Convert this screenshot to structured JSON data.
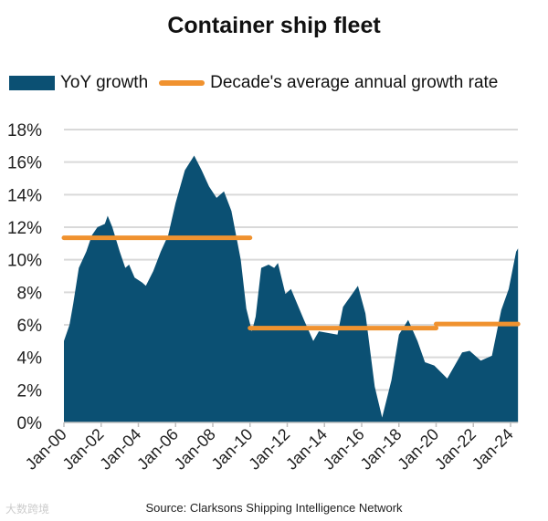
{
  "chart_data": {
    "type": "area",
    "title": "Container ship fleet",
    "xlabel": "",
    "ylabel": "",
    "ylim": [
      0,
      18
    ],
    "xlim": [
      2000,
      2024.4
    ],
    "y_ticks": [
      "0%",
      "2%",
      "4%",
      "6%",
      "8%",
      "10%",
      "12%",
      "14%",
      "16%",
      "18%"
    ],
    "x_ticks": [
      "Jan-00",
      "Jan-02",
      "Jan-04",
      "Jan-06",
      "Jan-08",
      "Jan-10",
      "Jan-12",
      "Jan-14",
      "Jan-16",
      "Jan-18",
      "Jan-20",
      "Jan-22",
      "Jan-24"
    ],
    "grid": true,
    "legend_position": "top",
    "legend": [
      "YoY growth",
      "Decade's average annual growth rate"
    ],
    "colors": {
      "area": "#0b5073",
      "line": "#f0922f",
      "grid": "#d9d9d9"
    },
    "series": [
      {
        "name": "YoY growth",
        "x": [
          2000.0,
          2000.3,
          2000.5,
          2000.8,
          2001.2,
          2001.5,
          2001.8,
          2002.2,
          2002.35,
          2002.6,
          2003.0,
          2003.3,
          2003.5,
          2003.8,
          2004.2,
          2004.4,
          2004.8,
          2005.2,
          2005.6,
          2006.0,
          2006.5,
          2007.0,
          2007.4,
          2007.8,
          2008.2,
          2008.6,
          2009.0,
          2009.5,
          2009.8,
          2010.1,
          2010.3,
          2010.6,
          2011.0,
          2011.3,
          2011.5,
          2011.9,
          2012.2,
          2012.9,
          2013.4,
          2013.7,
          2014.7,
          2015.0,
          2015.8,
          2016.2,
          2016.7,
          2017.1,
          2017.6,
          2018.0,
          2018.5,
          2019.0,
          2019.4,
          2019.9,
          2020.6,
          2021.4,
          2021.8,
          2022.4,
          2023.0,
          2023.5,
          2023.9,
          2024.3,
          2024.4
        ],
        "values": [
          5.0,
          6.0,
          7.3,
          9.5,
          10.5,
          11.5,
          12.0,
          12.2,
          12.7,
          12.0,
          10.5,
          9.5,
          9.7,
          8.9,
          8.6,
          8.4,
          9.3,
          10.5,
          11.5,
          13.5,
          15.5,
          16.4,
          15.5,
          14.5,
          13.8,
          14.2,
          13.0,
          10.0,
          7.0,
          5.6,
          6.5,
          9.5,
          9.7,
          9.5,
          9.8,
          7.9,
          8.2,
          6.3,
          5.0,
          5.6,
          5.4,
          7.1,
          8.4,
          6.7,
          2.2,
          0.3,
          2.6,
          5.4,
          6.3,
          5.0,
          3.7,
          3.5,
          2.7,
          4.3,
          4.4,
          3.8,
          4.1,
          6.9,
          8.2,
          10.5,
          10.7
        ]
      },
      {
        "name": "Decade's average annual growth rate",
        "segments": [
          {
            "x": [
              2000,
              2010
            ],
            "value": 11.35
          },
          {
            "x": [
              2010,
              2020
            ],
            "value": 5.8
          },
          {
            "x": [
              2020,
              2024.4
            ],
            "value": 6.05
          }
        ]
      }
    ]
  },
  "source": "Source: Clarksons Shipping Intelligence Network",
  "watermark": "大数跨境"
}
